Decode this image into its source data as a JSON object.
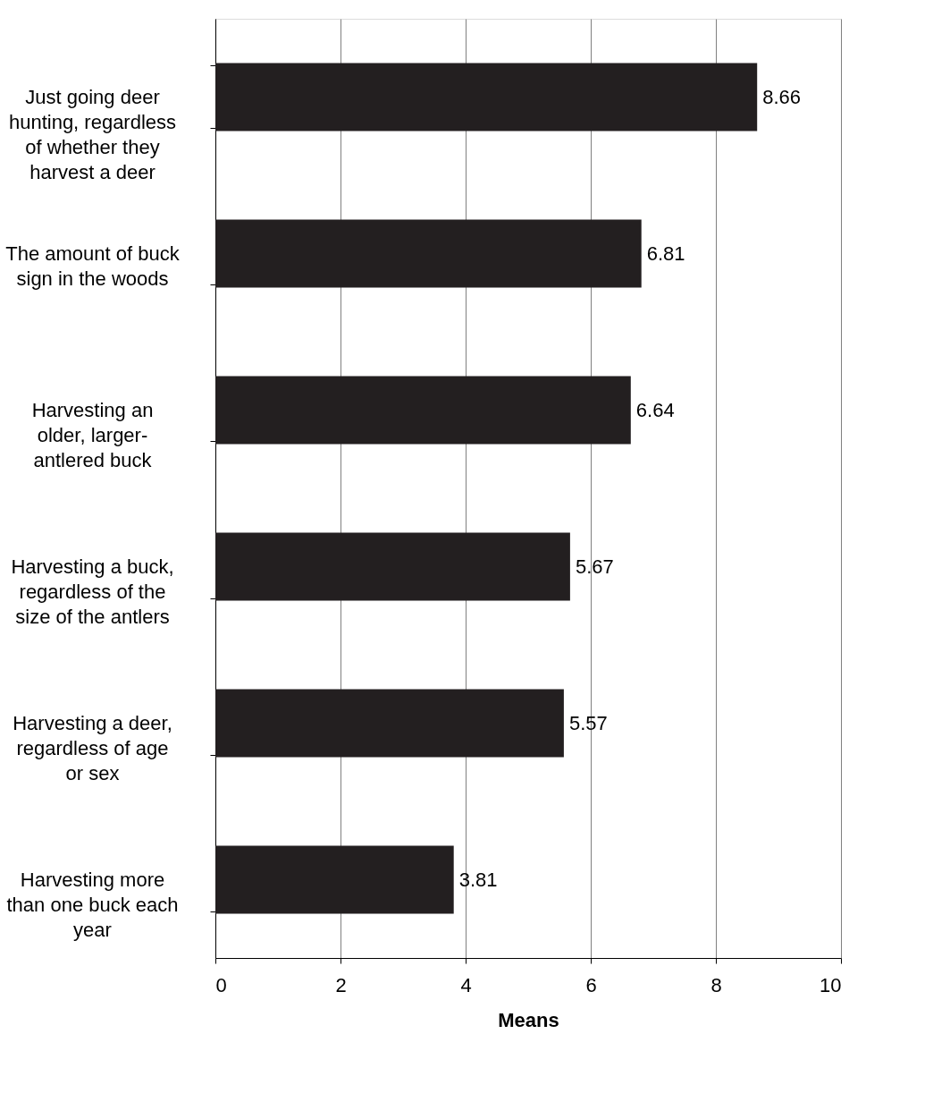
{
  "chart_data": {
    "type": "bar",
    "orientation": "horizontal",
    "xlabel": "Means",
    "categories": [
      "Just going deer hunting, regardless of whether they harvest a deer",
      "The amount of buck sign in the woods",
      "Harvesting an older, larger-antlered buck",
      "Harvesting a buck, regardless of the size of the antlers",
      "Harvesting a deer, regardless of age or sex",
      "Harvesting more than one buck each year"
    ],
    "values": [
      8.66,
      6.81,
      6.64,
      5.67,
      5.57,
      3.81
    ],
    "color": "#231f20",
    "xlim": [
      0,
      10
    ],
    "xticks": [
      0,
      2,
      4,
      6,
      8,
      10
    ],
    "grid": "x",
    "data_labels": true
  }
}
